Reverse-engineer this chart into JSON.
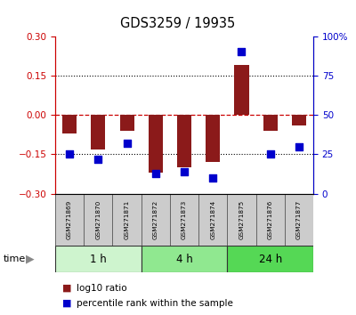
{
  "title": "GDS3259 / 19935",
  "samples": [
    "GSM271869",
    "GSM271870",
    "GSM271871",
    "GSM271872",
    "GSM271873",
    "GSM271874",
    "GSM271875",
    "GSM271876",
    "GSM271877"
  ],
  "log10_ratio": [
    -0.07,
    -0.13,
    -0.06,
    -0.22,
    -0.2,
    -0.18,
    0.19,
    -0.06,
    -0.04
  ],
  "percentile_rank": [
    25,
    22,
    32,
    13,
    14,
    10,
    90,
    25,
    30
  ],
  "ylim_left": [
    -0.3,
    0.3
  ],
  "ylim_right": [
    0,
    100
  ],
  "yticks_left": [
    -0.3,
    -0.15,
    0,
    0.15,
    0.3
  ],
  "yticks_right": [
    0,
    25,
    50,
    75,
    100
  ],
  "time_groups": [
    {
      "label": "1 h",
      "start": 0,
      "end": 3,
      "color": "#cef4ce"
    },
    {
      "label": "4 h",
      "start": 3,
      "end": 6,
      "color": "#90e890"
    },
    {
      "label": "24 h",
      "start": 6,
      "end": 9,
      "color": "#55d855"
    }
  ],
  "bar_color": "#8b1a1a",
  "dot_color": "#0000cc",
  "bar_width": 0.5,
  "dot_size": 35,
  "legend_red_label": "log10 ratio",
  "legend_blue_label": "percentile rank within the sample",
  "background_color": "#ffffff",
  "sample_box_color": "#cccccc",
  "time_label": "time"
}
